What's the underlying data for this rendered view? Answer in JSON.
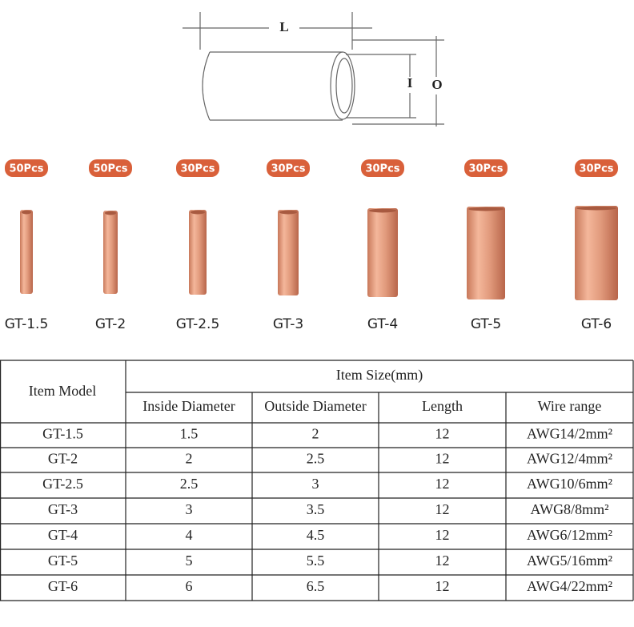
{
  "diagram": {
    "length_label": "L",
    "inner_label": "I",
    "outer_label": "O"
  },
  "products": [
    {
      "quantity": "50Pcs",
      "model": "GT-1.5"
    },
    {
      "quantity": "50Pcs",
      "model": "GT-2"
    },
    {
      "quantity": "30Pcs",
      "model": "GT-2.5"
    },
    {
      "quantity": "30Pcs",
      "model": "GT-3"
    },
    {
      "quantity": "30Pcs",
      "model": "GT-4"
    },
    {
      "quantity": "30Pcs",
      "model": "GT-5"
    },
    {
      "quantity": "30Pcs",
      "model": "GT-6"
    }
  ],
  "table": {
    "header": {
      "item_model": "Item Model",
      "item_size": "Item Size(mm)",
      "columns": [
        "Inside Diameter",
        "Outside Diameter",
        "Length",
        "Wire range"
      ]
    },
    "rows": [
      [
        "GT-1.5",
        "1.5",
        "2",
        "12",
        "AWG14/2mm²"
      ],
      [
        "GT-2",
        "2",
        "2.5",
        "12",
        "AWG12/4mm²"
      ],
      [
        "GT-2.5",
        "2.5",
        "3",
        "12",
        "AWG10/6mm²"
      ],
      [
        "GT-3",
        "3",
        "3.5",
        "12",
        "AWG8/8mm²"
      ],
      [
        "GT-4",
        "4",
        "4.5",
        "12",
        "AWG6/12mm²"
      ],
      [
        "GT-5",
        "5",
        "5.5",
        "12",
        "AWG5/16mm²"
      ],
      [
        "GT-6",
        "6",
        "6.5",
        "12",
        "AWG4/22mm²"
      ]
    ]
  }
}
